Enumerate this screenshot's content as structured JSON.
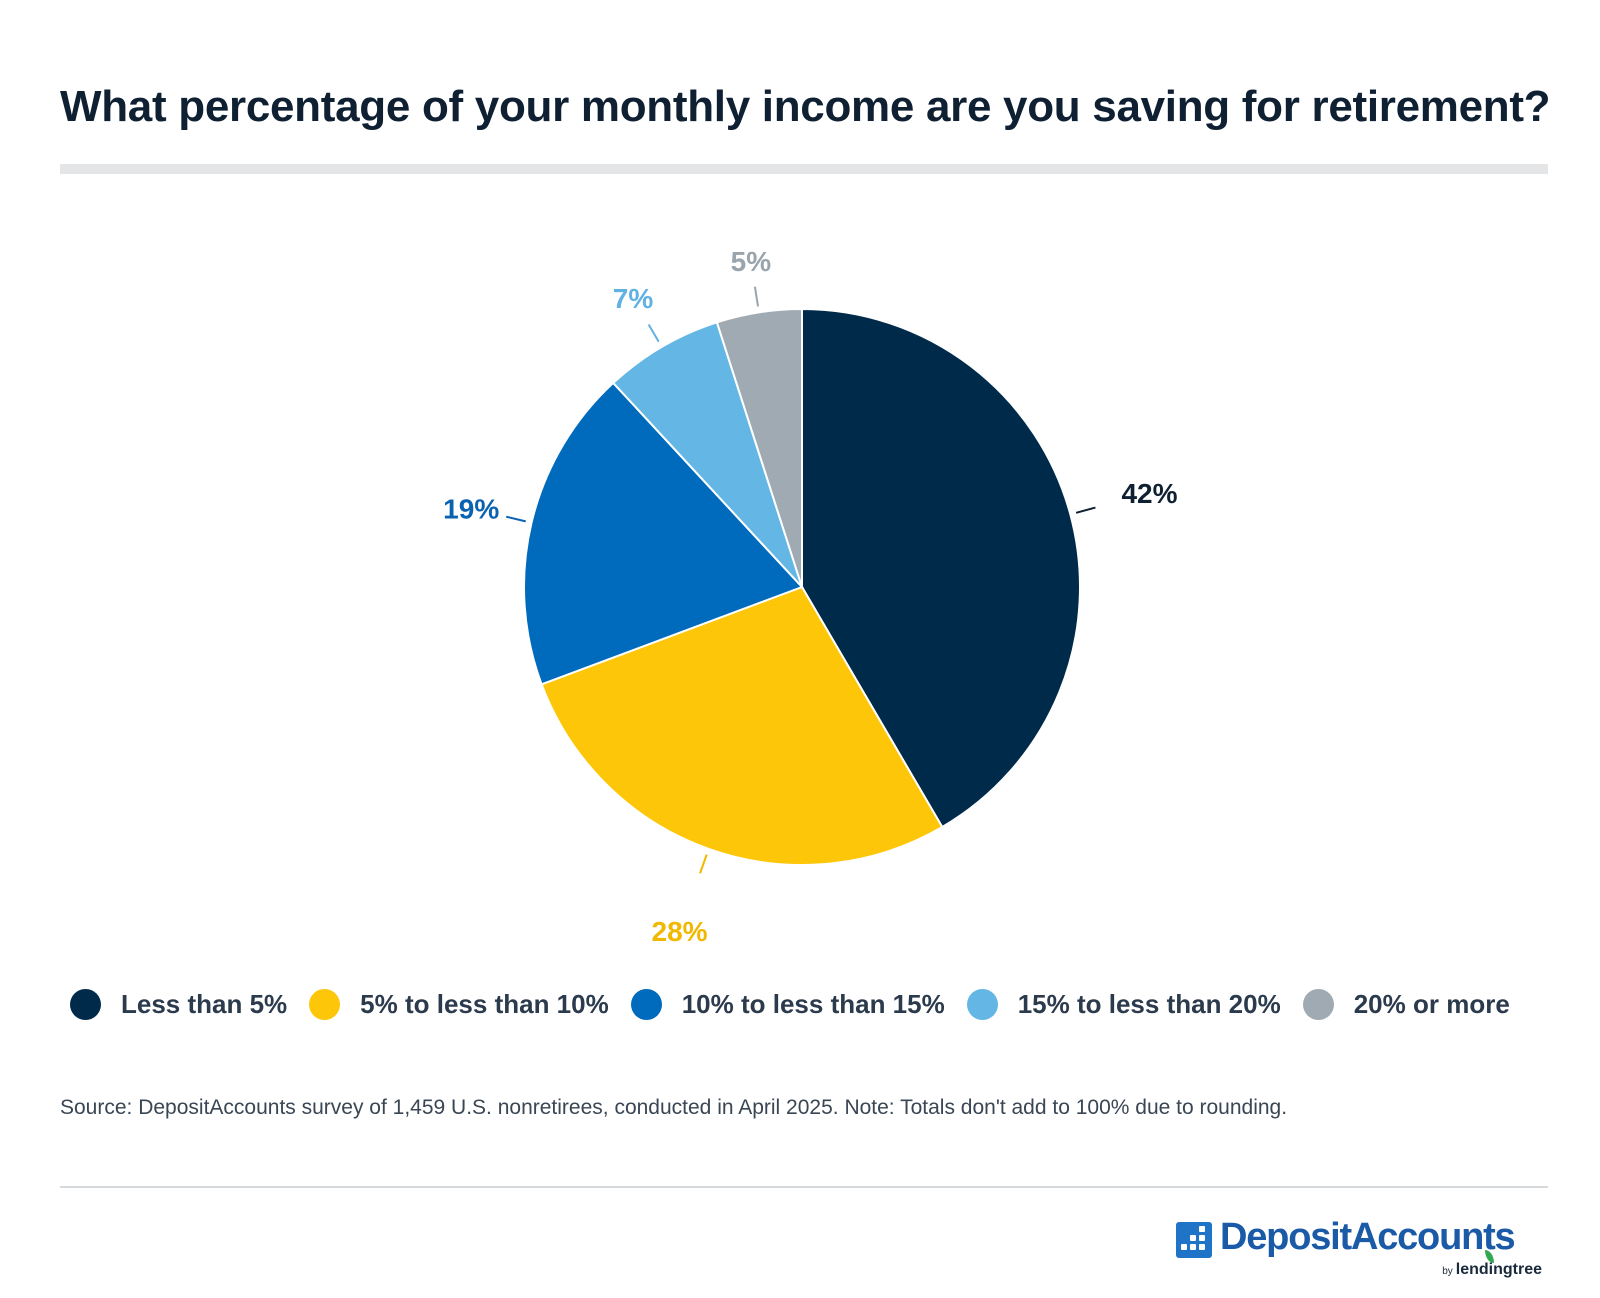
{
  "header": {
    "title": "What percentage of your monthly income are you saving for retirement?"
  },
  "chart_data": {
    "type": "pie",
    "title": "What percentage of your monthly income are you saving for retirement?",
    "categories": [
      "Less than 5%",
      "5% to less than 10%",
      "10% to less than 15%",
      "15% to less than 20%",
      "20% or more"
    ],
    "values": [
      42,
      28,
      19,
      7,
      5
    ],
    "data_labels": [
      "42%",
      "28%",
      "19%",
      "7%",
      "5%"
    ],
    "colors": [
      "#002a4a",
      "#fdc609",
      "#006abc",
      "#64b7e5",
      "#a0aab2"
    ],
    "label_colors": [
      "#0f2033",
      "#f0b800",
      "#0a63b0",
      "#5fb2e3",
      "#9aa4ad"
    ],
    "legend_position": "bottom",
    "start_angle": "12 o'clock",
    "direction": "clockwise"
  },
  "footer": {
    "source": "Source: DepositAccounts survey of 1,459 U.S. nonretirees, conducted in April 2025. Note: Totals don't add to 100% due to rounding."
  },
  "logo": {
    "name": "DepositAccounts",
    "by": "by",
    "parent": "lendingtree"
  }
}
